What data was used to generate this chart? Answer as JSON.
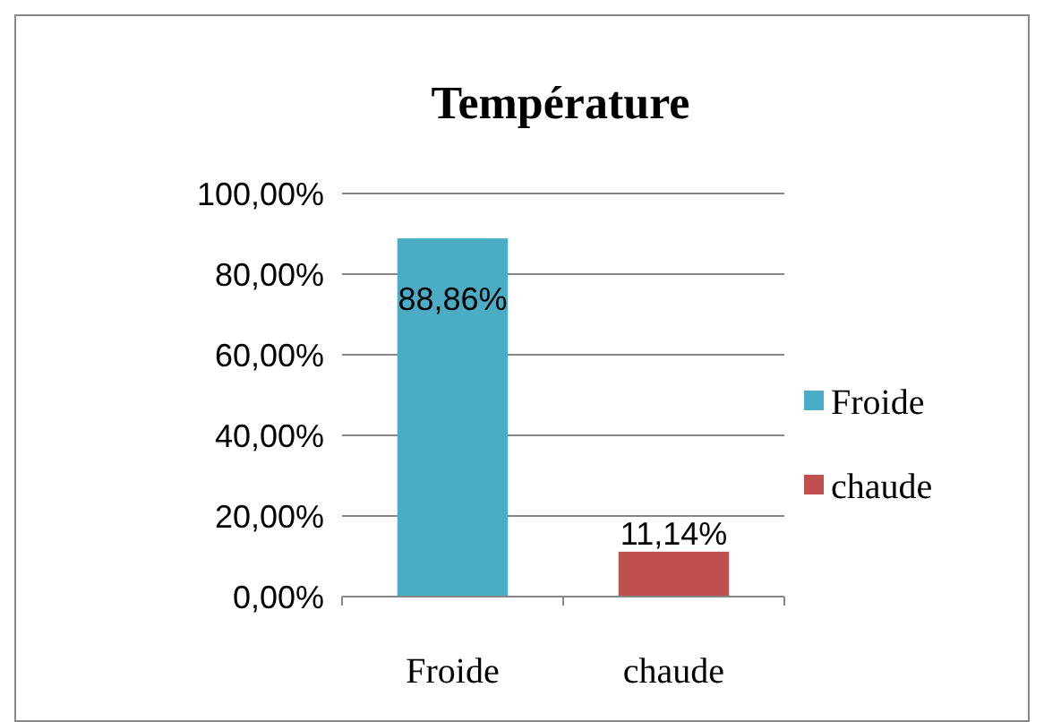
{
  "chart_data": {
    "type": "bar",
    "title": "Température",
    "categories": [
      "Froide",
      "chaude"
    ],
    "series": [
      {
        "name": "Froide",
        "color": "#4bacc6",
        "values": [
          88.86,
          null
        ],
        "value_labels": [
          "88,86%",
          null
        ]
      },
      {
        "name": "chaude",
        "color": "#c0504d",
        "values": [
          null,
          11.14
        ],
        "value_labels": [
          null,
          "11,14%"
        ]
      }
    ],
    "ylim": [
      0,
      100
    ],
    "yticks": [
      {
        "value": 0,
        "label": "0,00%"
      },
      {
        "value": 20,
        "label": "20,00%"
      },
      {
        "value": 40,
        "label": "40,00%"
      },
      {
        "value": 60,
        "label": "60,00%"
      },
      {
        "value": 80,
        "label": "80,00%"
      },
      {
        "value": 100,
        "label": "100,00%"
      }
    ],
    "grid": "y",
    "legend": "right"
  }
}
